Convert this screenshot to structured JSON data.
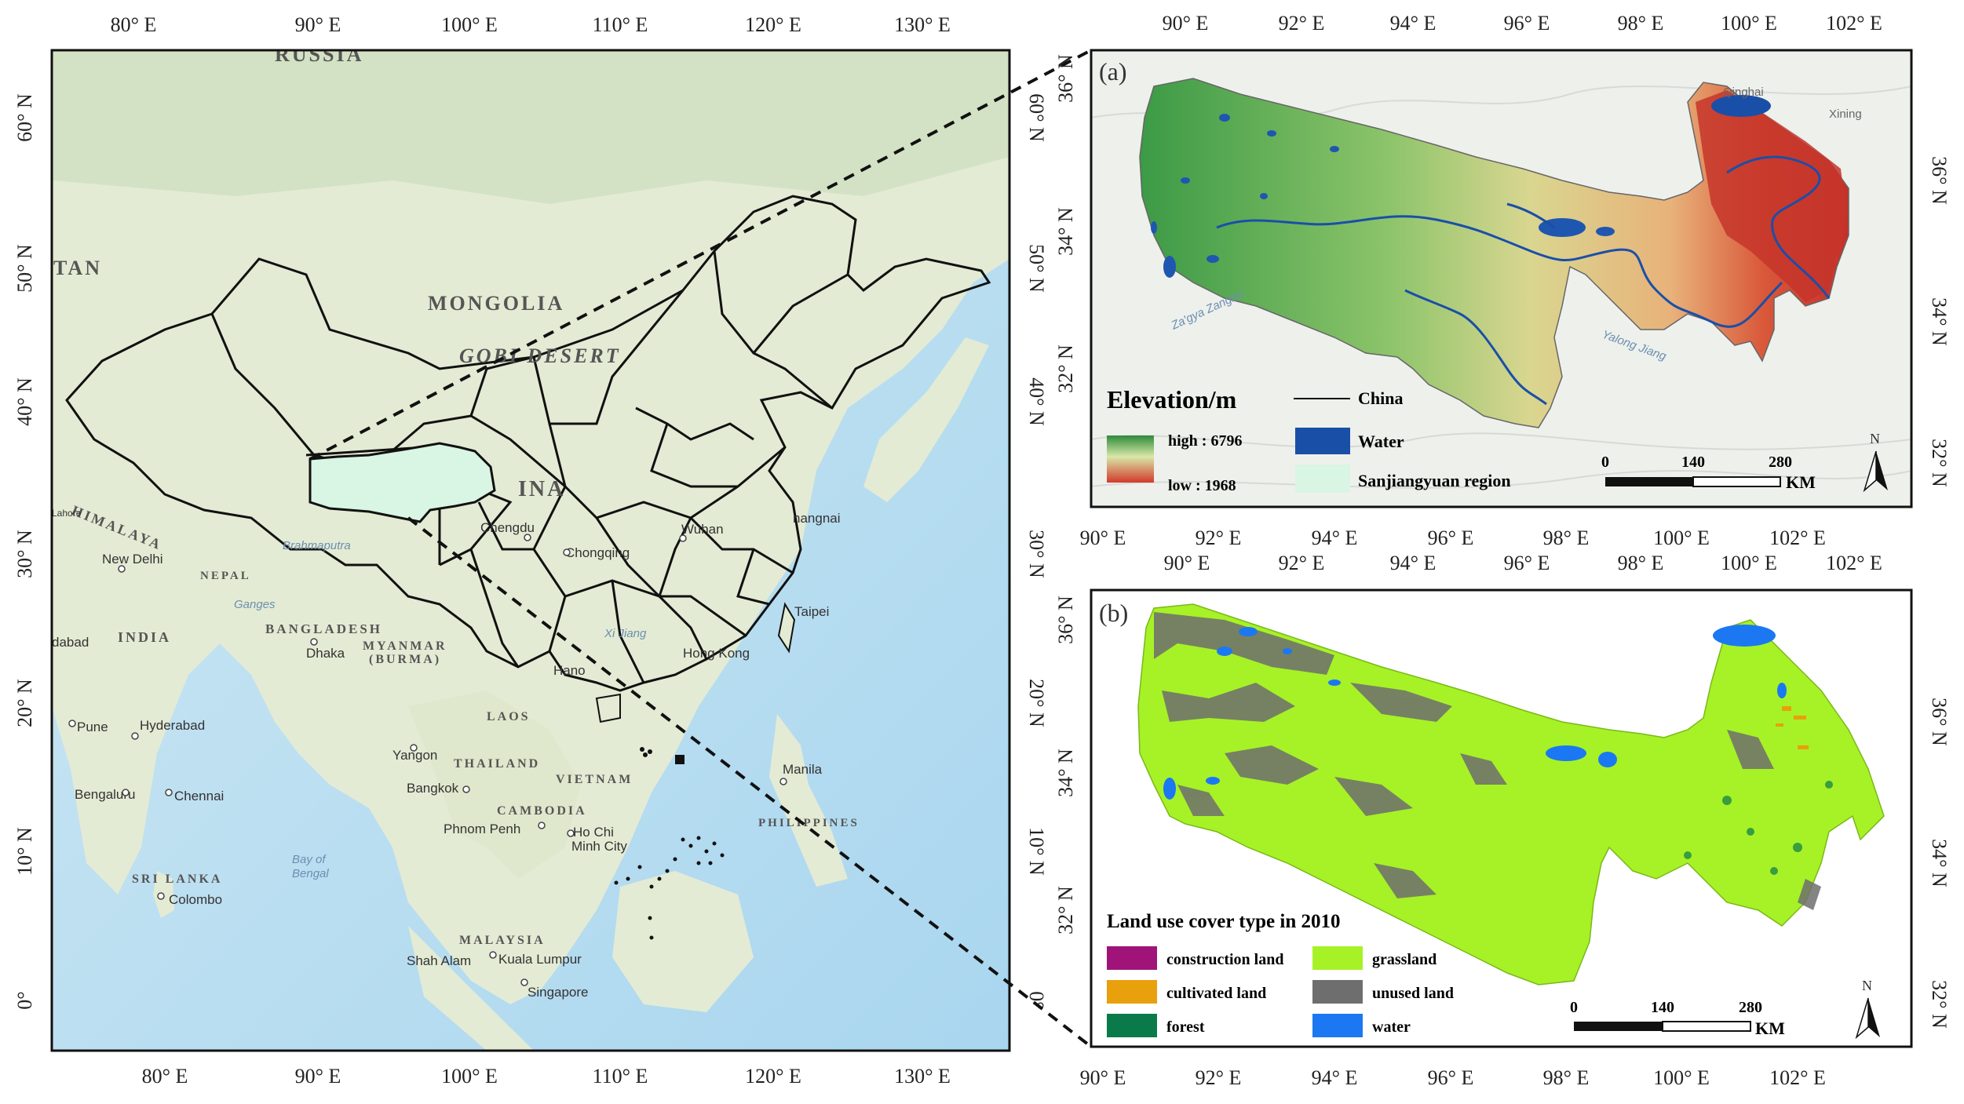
{
  "main_map": {
    "top_ticks": [
      "80° E",
      "90° E",
      "100° E",
      "110° E",
      "120° E",
      "130° E"
    ],
    "bottom_ticks": [
      "80° E",
      "90° E",
      "100° E",
      "110° E",
      "120° E",
      "130° E"
    ],
    "left_ticks": [
      "60° N",
      "50° N",
      "40° N",
      "30° N",
      "20° N",
      "10° N",
      "0°"
    ],
    "right_ticks": [
      "60° N",
      "50° N",
      "40° N",
      "30° N",
      "20° N",
      "10° N",
      "0°"
    ],
    "country_labels": [
      "RUSSIA",
      "TAN",
      "MONGOLIA",
      "GOBI DESERT",
      "INDIA",
      "BANGLADESH",
      "MYANMAR",
      "(BURMA)",
      "LAOS",
      "THAILAND",
      "VIETNAM",
      "CAMBODIA",
      "PHILIPPINES",
      "SRI LANKA",
      "MALAYSIA",
      "NEPAL",
      "HIMALAYA",
      "INA"
    ],
    "city_labels": [
      "Chengdu",
      "Chongqing",
      "Wuhan",
      "nangnai",
      "Taipei",
      "Hong Kong",
      "Hano",
      "New Delhi",
      "Dhaka",
      "Yangon",
      "Bangkok",
      "Phnom Penh",
      "Ho Chi",
      "Minh City",
      "Manila",
      "Kuala Lumpur",
      "Shah Alam",
      "Singapore",
      "Colombo",
      "Chennai",
      "Bengaluru",
      "Hyderabad",
      "Pune",
      "dabad",
      "Lahore"
    ],
    "other_labels": [
      "Bay of",
      "Bengal",
      "Brahmaputra",
      "Ganges",
      "Xi Jiang"
    ],
    "colors": {
      "land": "#e6ecd6",
      "sea": "#bfe0f2",
      "boundary": "#111111",
      "sanjiangyuan": "#d9f5e3"
    }
  },
  "panel_a": {
    "panel_label": "(a)",
    "top_ticks": [
      "90° E",
      "92° E",
      "94° E",
      "96° E",
      "98° E",
      "100° E",
      "102° E"
    ],
    "bottom_ticks": [
      "90° E",
      "92° E",
      "94° E",
      "96° E",
      "98° E",
      "100° E",
      "102° E"
    ],
    "left_ticks": [
      "36° N",
      "34° N",
      "32° N"
    ],
    "right_ticks": [
      "36° N",
      "34° N",
      "32° N"
    ],
    "map_labels": [
      "Qinghai",
      "Xining",
      "Za'gya Zangbo",
      "Yalong Jiang"
    ],
    "legend": {
      "title": "Elevation/m",
      "high": "high : 6796",
      "low": "low : 1968",
      "china": "China",
      "water": "Water",
      "region": "Sanjiangyuan region"
    },
    "scalebar": {
      "labels": [
        "0",
        "140",
        "280"
      ],
      "unit": "KM"
    },
    "north": "N"
  },
  "panel_b": {
    "panel_label": "(b)",
    "top_ticks": [
      "90° E",
      "92° E",
      "94° E",
      "96° E",
      "98° E",
      "100° E",
      "102° E"
    ],
    "bottom_ticks": [
      "90° E",
      "92° E",
      "94° E",
      "96° E",
      "98° E",
      "100° E",
      "102° E"
    ],
    "left_ticks": [
      "36° N",
      "34° N",
      "32° N"
    ],
    "right_ticks": [
      "36° N",
      "34° N",
      "32° N"
    ],
    "legend": {
      "title": "Land use cover type in 2010",
      "items": [
        {
          "label": "construction land",
          "color": "#a0147a"
        },
        {
          "label": "grassland",
          "color": "#a6f226"
        },
        {
          "label": "cultivated land",
          "color": "#e8a00c"
        },
        {
          "label": "unused land",
          "color": "#6e6e6e"
        },
        {
          "label": "forest",
          "color": "#0a7a4a"
        },
        {
          "label": "water",
          "color": "#1b78f2"
        }
      ]
    },
    "scalebar": {
      "labels": [
        "0",
        "140",
        "280"
      ],
      "unit": "KM"
    },
    "north": "N"
  }
}
